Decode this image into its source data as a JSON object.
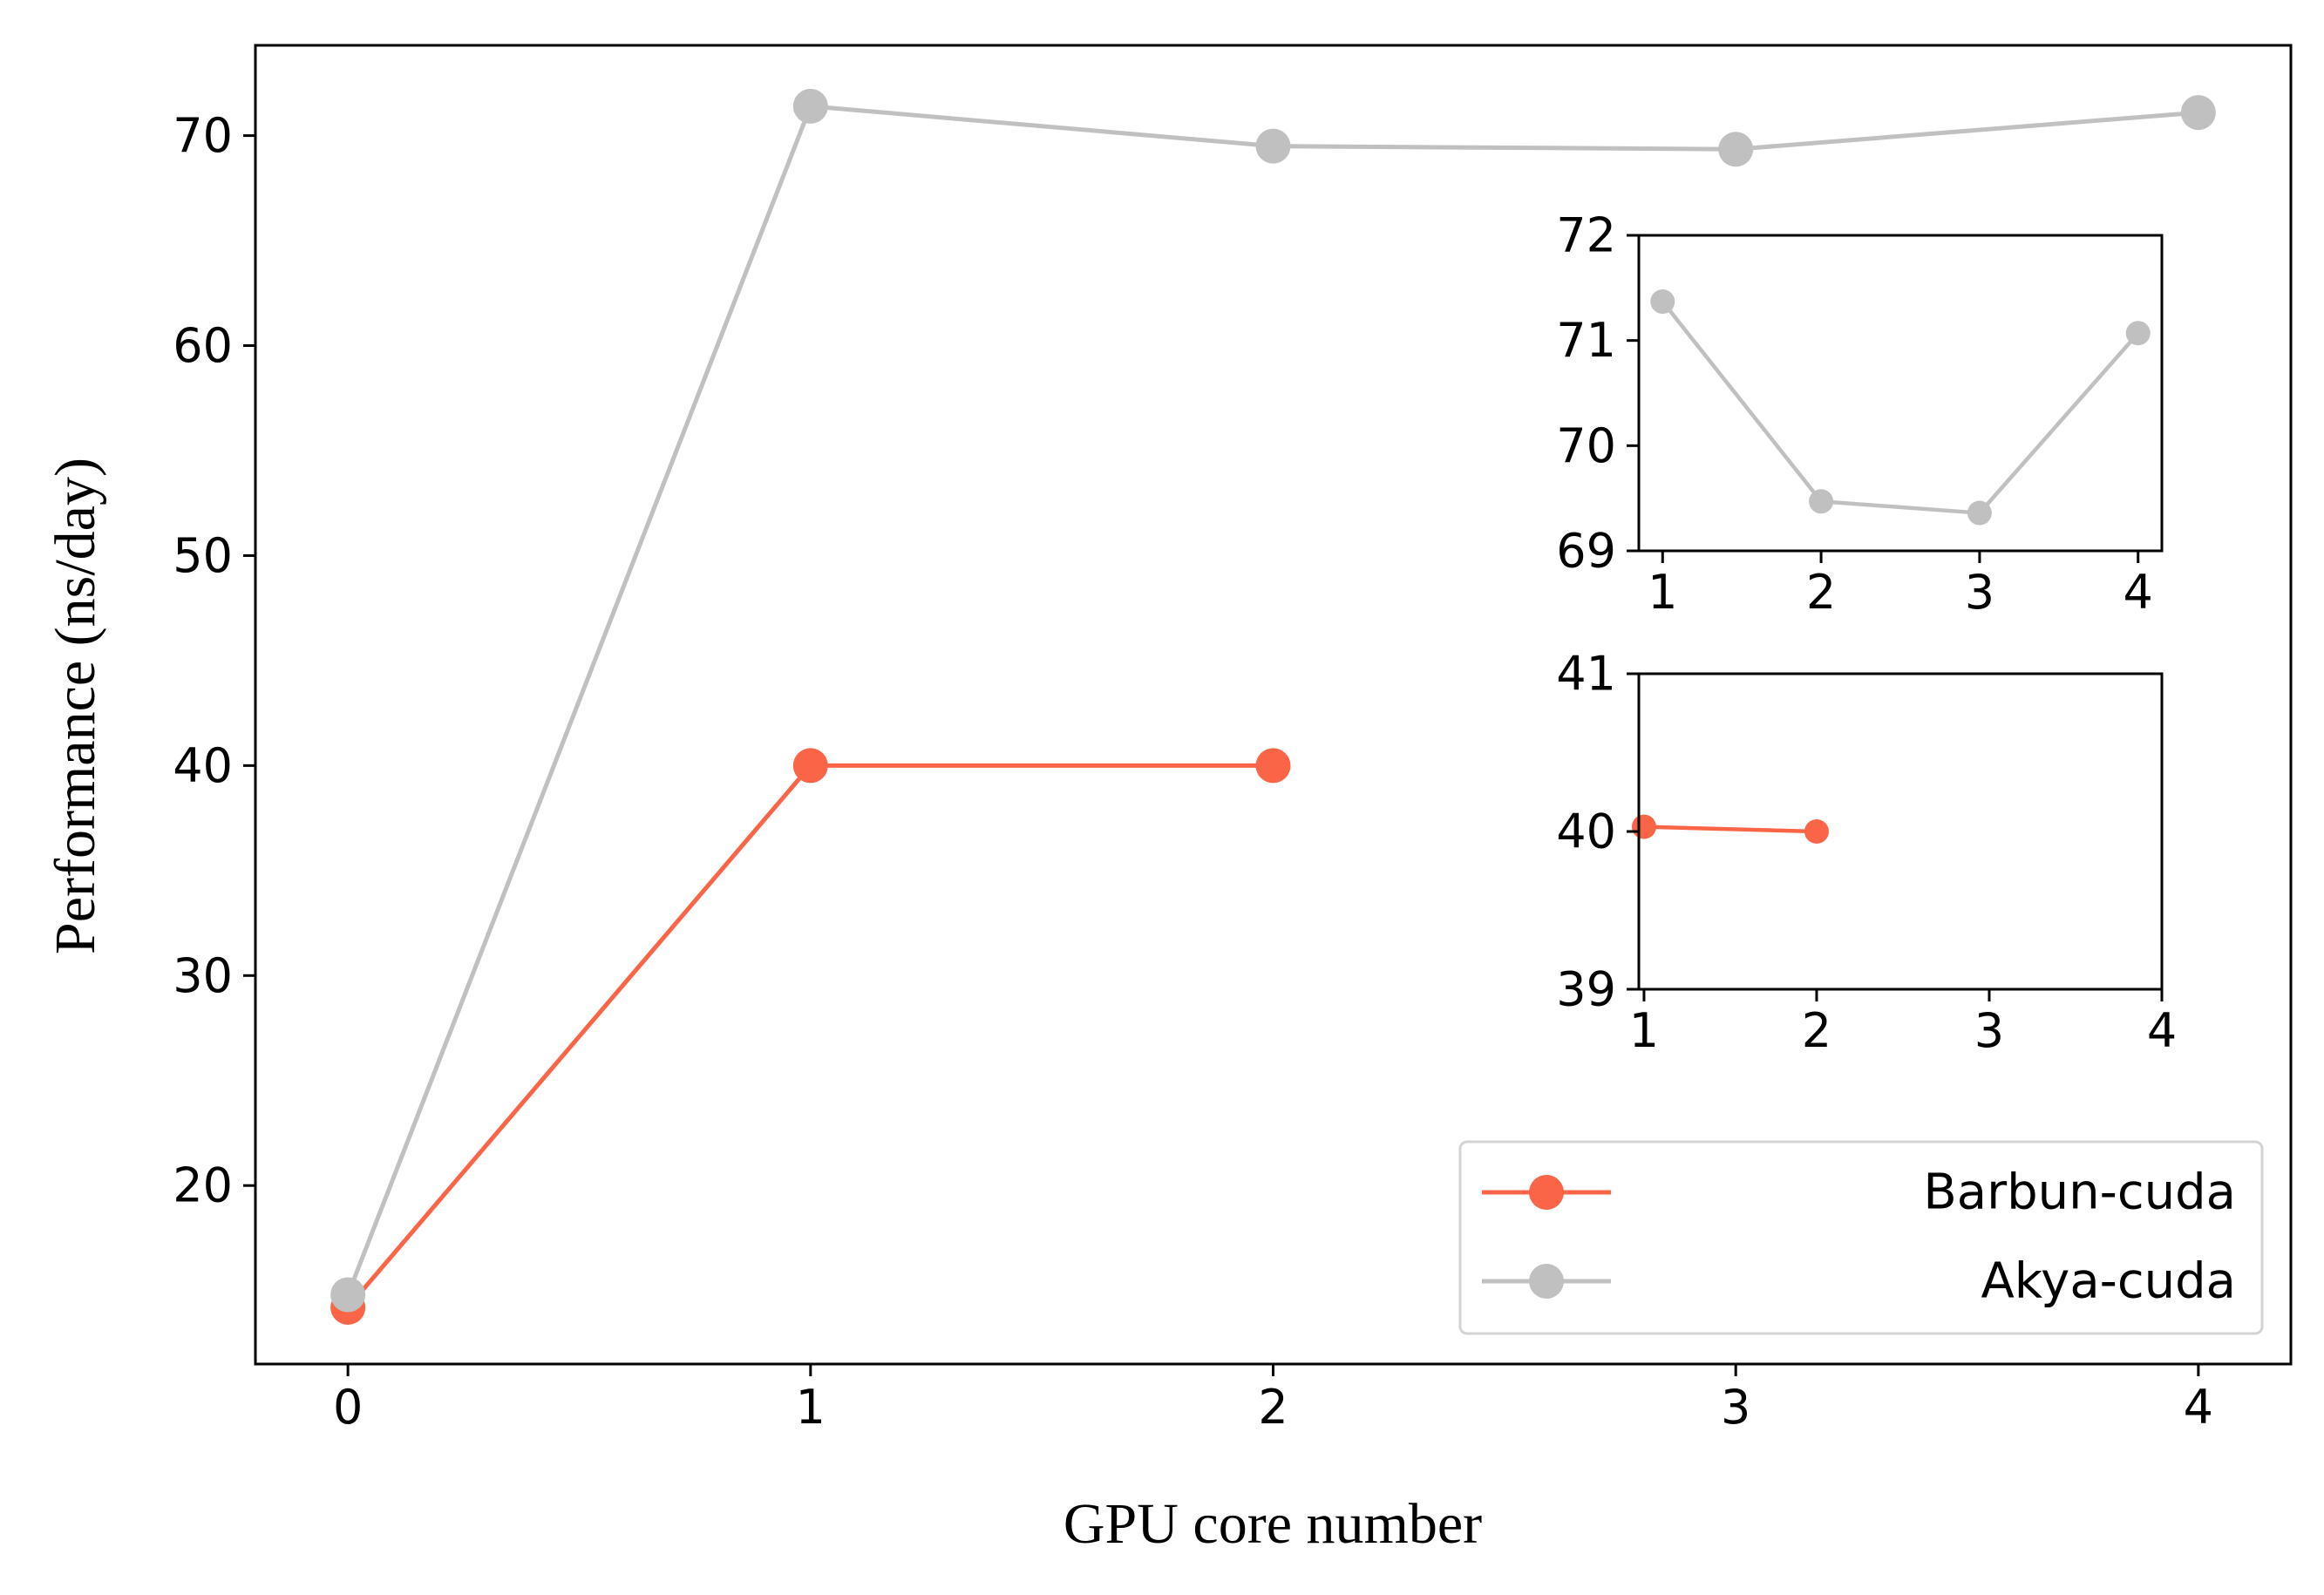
{
  "chart_data": [
    {
      "type": "line",
      "xlabel": "GPU core number",
      "ylabel": "Performance (ns/day)",
      "x": [
        0,
        1,
        2,
        3,
        4
      ],
      "xticks": [
        "0",
        "1",
        "2",
        "3",
        "4"
      ],
      "yticks": [
        "20",
        "30",
        "40",
        "50",
        "60",
        "70"
      ],
      "xlim": [
        -0.2,
        4.2
      ],
      "ylim": [
        11.5,
        74.3
      ],
      "grid": false,
      "legend_position": "lower-right",
      "series": [
        {
          "name": "Barbun-cuda",
          "color": "#fa6548",
          "x": [
            0,
            1,
            2
          ],
          "values": [
            14.2,
            40.0,
            40.0
          ]
        },
        {
          "name": "Akya-cuda",
          "color": "#c0c0c0",
          "x": [
            0,
            1,
            2,
            3,
            4
          ],
          "values": [
            14.8,
            71.4,
            69.5,
            69.35,
            71.1
          ]
        }
      ]
    },
    {
      "type": "line",
      "inset": "upper",
      "x": [
        1,
        2,
        3,
        4
      ],
      "xticks": [
        "1",
        "2",
        "3",
        "4"
      ],
      "yticks": [
        "69",
        "70",
        "71",
        "72"
      ],
      "xlim": [
        0.85,
        4.15
      ],
      "ylim": [
        69,
        72
      ],
      "series": [
        {
          "name": "Akya-cuda",
          "color": "#c0c0c0",
          "x": [
            1,
            2,
            3,
            4
          ],
          "values": [
            71.37,
            69.47,
            69.36,
            71.07
          ]
        }
      ]
    },
    {
      "type": "line",
      "inset": "lower",
      "x": [
        1,
        2,
        3,
        4
      ],
      "xticks": [
        "1",
        "2",
        "3",
        "4"
      ],
      "yticks": [
        "39",
        "40",
        "41"
      ],
      "xlim": [
        0.97,
        4.0
      ],
      "ylim": [
        39,
        41
      ],
      "series": [
        {
          "name": "Barbun-cuda",
          "color": "#fa6548",
          "x": [
            1,
            2
          ],
          "values": [
            40.03,
            40.0
          ]
        }
      ]
    }
  ]
}
